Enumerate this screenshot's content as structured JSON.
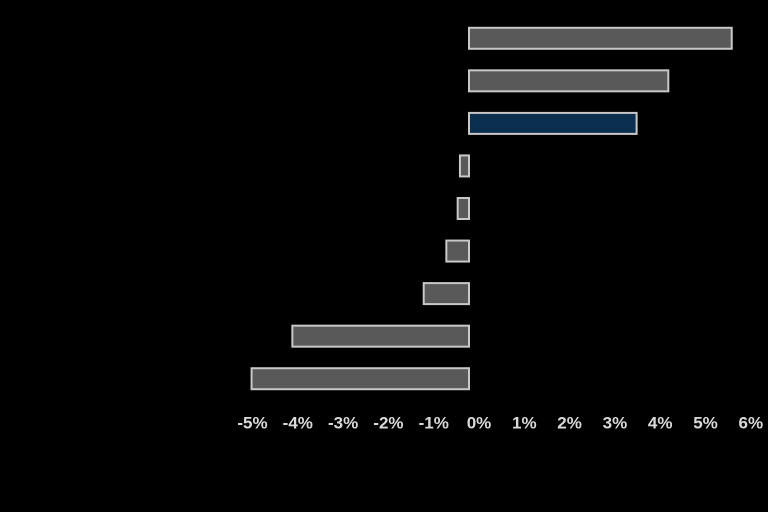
{
  "chart_data": {
    "type": "barh",
    "categories": [
      null,
      null,
      null,
      null,
      null,
      null,
      null,
      null,
      null
    ],
    "values": [
      5.8,
      4.4,
      3.7,
      -0.2,
      -0.25,
      -0.5,
      -1.0,
      -3.9,
      -4.8
    ],
    "colors": [
      "#595959",
      "#595959",
      "#0b2f4f",
      "#595959",
      "#595959",
      "#595959",
      "#595959",
      "#595959",
      "#595959"
    ],
    "xlim": [
      -5,
      6
    ],
    "xticks": [
      {
        "value": -5,
        "label": "-5%"
      },
      {
        "value": -4,
        "label": "-4%"
      },
      {
        "value": -3,
        "label": "-3%"
      },
      {
        "value": -2,
        "label": "-2%"
      },
      {
        "value": -1,
        "label": "-1%"
      },
      {
        "value": 0,
        "label": "0%"
      },
      {
        "value": 1,
        "label": "1%"
      },
      {
        "value": 2,
        "label": "2%"
      },
      {
        "value": 3,
        "label": "3%"
      },
      {
        "value": 4,
        "label": "4%"
      },
      {
        "value": 5,
        "label": "5%"
      },
      {
        "value": 6,
        "label": "6%"
      }
    ],
    "grid": false
  }
}
